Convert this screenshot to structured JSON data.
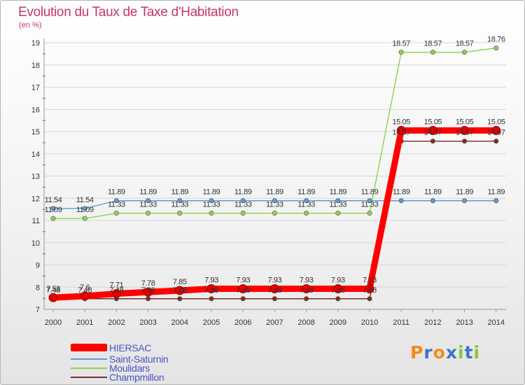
{
  "page": {
    "title": "Evolution du Taux de Taxe d'Habitation",
    "subtitle": "(en %)",
    "logo": "Proxiti"
  },
  "colors": {
    "title": "#c8356d",
    "grid": "#d6d6d6",
    "axis_text": "#333333",
    "legend_text": "#4a54c9"
  },
  "chart_data": {
    "type": "line",
    "x": [
      "2000",
      "2001",
      "2002",
      "2003",
      "2004",
      "2005",
      "2006",
      "2007",
      "2008",
      "2009",
      "2010",
      "2011",
      "2012",
      "2013",
      "2014"
    ],
    "ylim": [
      7,
      19
    ],
    "yticks": [
      "7",
      "8",
      "9",
      "10",
      "11",
      "12",
      "13",
      "14",
      "15",
      "16",
      "17",
      "18",
      "19"
    ],
    "grid": true,
    "series": [
      {
        "name": "HIERSAC",
        "color": "#ff0000",
        "values": [
          7.53,
          7.6,
          7.71,
          7.78,
          7.85,
          7.93,
          7.93,
          7.93,
          7.93,
          7.93,
          7.93,
          15.05,
          15.05,
          15.05,
          15.05
        ],
        "labels": [
          "7.53",
          "7.6",
          "7.71",
          "7.78",
          "7.85",
          "7.93",
          "7.93",
          "7.93",
          "7.93",
          "7.93",
          "7.93",
          "15.05",
          "15.05",
          "15.05",
          "15.05"
        ]
      },
      {
        "name": "Saint-Saturnin",
        "color": "#5b9bd5",
        "values": [
          11.54,
          11.54,
          11.89,
          11.89,
          11.89,
          11.89,
          11.89,
          11.89,
          11.89,
          11.89,
          11.89,
          11.89,
          11.89,
          11.89,
          11.89
        ],
        "labels": [
          "11.54",
          "11.54",
          "11.89",
          "11.89",
          "11.89",
          "11.89",
          "11.89",
          "11.89",
          "11.89",
          "11.89",
          "11.89",
          "11.89",
          "11.89",
          "11.89",
          "11.89"
        ]
      },
      {
        "name": "Moulidars",
        "color": "#8fd14f",
        "values": [
          11.09,
          11.09,
          11.33,
          11.33,
          11.33,
          11.33,
          11.33,
          11.33,
          11.33,
          11.33,
          11.33,
          18.57,
          18.57,
          18.57,
          18.76
        ],
        "labels": [
          "11.09",
          "11.09",
          "11.33",
          "11.33",
          "11.33",
          "11.33",
          "11.33",
          "11.33",
          "11.33",
          "11.33",
          "11.33",
          "18.57",
          "18.57",
          "18.57",
          "18.76"
        ]
      },
      {
        "name": "Champmillon",
        "color": "#7a2b2b",
        "values": [
          7.48,
          7.48,
          7.48,
          7.48,
          7.48,
          7.48,
          7.48,
          7.48,
          7.48,
          7.48,
          7.48,
          14.57,
          14.57,
          14.57,
          14.57
        ],
        "labels": [
          "7.48",
          "7.48",
          "7.48",
          "7.48",
          "7.48",
          "7.48",
          "7.48",
          "7.48",
          "7.48",
          "7.48",
          "7.48",
          "14.57",
          "14.57",
          "14.57",
          "14.57"
        ]
      }
    ]
  }
}
